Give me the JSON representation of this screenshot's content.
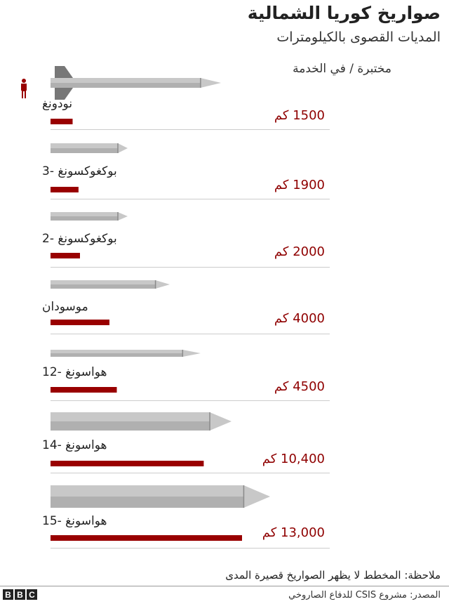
{
  "title": "صواريخ كوريا الشمالية",
  "subtitle": "المديات القصوى بالكيلومترات",
  "legend": "مختبرة / في الخدمة",
  "note": "ملاحظة: المخطط لا يظهر الصواريخ قصيرة المدى",
  "source": "المصدر: مشروع CSIS للدفاع الصاروخي",
  "logo": "BBC",
  "colors": {
    "bar": "#990000",
    "missile": "#c8c8c8",
    "missile_dark": "#8a8a8a",
    "person": "#990000"
  },
  "chart_data": {
    "type": "bar",
    "orientation": "horizontal",
    "unit": "كم",
    "categories": [
      "نودونغ",
      "بوكغوكسونغ -3",
      "بوكغوكسونغ -2",
      "موسودان",
      "هواسونغ -12",
      "هواسونغ -14",
      "هواسونغ -15"
    ],
    "values": [
      1500,
      1900,
      2000,
      4000,
      4500,
      10400,
      13000
    ],
    "value_labels": [
      "1500 كم",
      "1900 كم",
      "2000 كم",
      "4000 كم",
      "4500 كم",
      "10,400 كم",
      "13,000 كم"
    ],
    "xlim": [
      0,
      13000
    ]
  }
}
